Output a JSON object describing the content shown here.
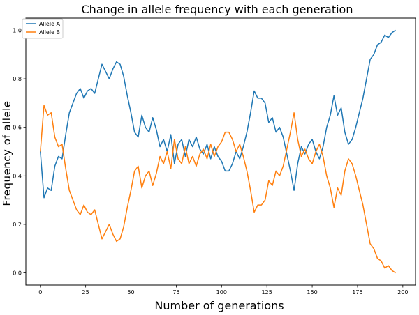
{
  "chart_data": {
    "type": "line",
    "title": "Change in allele frequency with each generation",
    "xlabel": "Number of generations",
    "ylabel": "Frequency of allele",
    "xlim": [
      -8,
      207
    ],
    "ylim": [
      -0.05,
      1.05
    ],
    "xticks": [
      0,
      25,
      50,
      75,
      100,
      125,
      150,
      175,
      200
    ],
    "xtick_labels": [
      "0",
      "25",
      "50",
      "75",
      "100",
      "125",
      "150",
      "175",
      "200"
    ],
    "yticks": [
      0.0,
      0.2,
      0.4,
      0.6,
      0.8,
      1.0
    ],
    "ytick_labels": [
      "0.0",
      "0.2",
      "0.4",
      "0.6",
      "0.8",
      "1.0"
    ],
    "grid": false,
    "legend_position": "top-left",
    "series": [
      {
        "name": "Allele A",
        "color": "#1f77b4",
        "x": [
          0,
          2,
          4,
          6,
          8,
          10,
          12,
          14,
          16,
          18,
          20,
          22,
          24,
          26,
          28,
          30,
          32,
          34,
          36,
          38,
          40,
          42,
          44,
          46,
          48,
          50,
          52,
          54,
          56,
          58,
          60,
          62,
          64,
          66,
          68,
          70,
          72,
          74,
          76,
          78,
          80,
          82,
          84,
          86,
          88,
          90,
          92,
          94,
          96,
          98,
          100,
          102,
          104,
          106,
          108,
          110,
          112,
          114,
          116,
          118,
          120,
          122,
          124,
          126,
          128,
          130,
          132,
          134,
          136,
          138,
          140,
          142,
          144,
          146,
          148,
          150,
          152,
          154,
          156,
          158,
          160,
          162,
          164,
          166,
          168,
          170,
          172,
          174,
          176,
          178,
          180,
          182,
          184,
          186,
          188,
          190,
          192,
          194,
          196
        ],
        "y": [
          0.5,
          0.31,
          0.35,
          0.34,
          0.44,
          0.48,
          0.47,
          0.57,
          0.66,
          0.7,
          0.74,
          0.76,
          0.72,
          0.75,
          0.76,
          0.74,
          0.8,
          0.86,
          0.83,
          0.8,
          0.84,
          0.87,
          0.86,
          0.81,
          0.73,
          0.66,
          0.58,
          0.56,
          0.65,
          0.6,
          0.58,
          0.64,
          0.59,
          0.52,
          0.55,
          0.5,
          0.57,
          0.45,
          0.53,
          0.55,
          0.48,
          0.55,
          0.52,
          0.56,
          0.51,
          0.49,
          0.53,
          0.47,
          0.52,
          0.48,
          0.46,
          0.42,
          0.42,
          0.45,
          0.5,
          0.47,
          0.52,
          0.58,
          0.66,
          0.75,
          0.72,
          0.72,
          0.7,
          0.62,
          0.64,
          0.58,
          0.6,
          0.56,
          0.49,
          0.42,
          0.34,
          0.45,
          0.52,
          0.49,
          0.53,
          0.55,
          0.5,
          0.47,
          0.52,
          0.6,
          0.65,
          0.73,
          0.65,
          0.68,
          0.58,
          0.53,
          0.55,
          0.6,
          0.66,
          0.72,
          0.8,
          0.88,
          0.9,
          0.94,
          0.95,
          0.98,
          0.97,
          0.99,
          1.0
        ]
      },
      {
        "name": "Allele B",
        "color": "#ff7f0e",
        "x": [
          0,
          2,
          4,
          6,
          8,
          10,
          12,
          14,
          16,
          18,
          20,
          22,
          24,
          26,
          28,
          30,
          32,
          34,
          36,
          38,
          40,
          42,
          44,
          46,
          48,
          50,
          52,
          54,
          56,
          58,
          60,
          62,
          64,
          66,
          68,
          70,
          72,
          74,
          76,
          78,
          80,
          82,
          84,
          86,
          88,
          90,
          92,
          94,
          96,
          98,
          100,
          102,
          104,
          106,
          108,
          110,
          112,
          114,
          116,
          118,
          120,
          122,
          124,
          126,
          128,
          130,
          132,
          134,
          136,
          138,
          140,
          142,
          144,
          146,
          148,
          150,
          152,
          154,
          156,
          158,
          160,
          162,
          164,
          166,
          168,
          170,
          172,
          174,
          176,
          178,
          180,
          182,
          184,
          186,
          188,
          190,
          192,
          194,
          196
        ],
        "y": [
          0.5,
          0.69,
          0.65,
          0.66,
          0.56,
          0.52,
          0.53,
          0.43,
          0.34,
          0.3,
          0.26,
          0.24,
          0.28,
          0.25,
          0.24,
          0.26,
          0.2,
          0.14,
          0.17,
          0.2,
          0.16,
          0.13,
          0.14,
          0.19,
          0.27,
          0.34,
          0.42,
          0.44,
          0.35,
          0.4,
          0.42,
          0.36,
          0.41,
          0.48,
          0.45,
          0.5,
          0.43,
          0.55,
          0.47,
          0.45,
          0.52,
          0.45,
          0.48,
          0.44,
          0.49,
          0.51,
          0.47,
          0.53,
          0.48,
          0.52,
          0.54,
          0.58,
          0.58,
          0.55,
          0.5,
          0.53,
          0.48,
          0.42,
          0.34,
          0.25,
          0.28,
          0.28,
          0.3,
          0.38,
          0.36,
          0.42,
          0.4,
          0.44,
          0.51,
          0.58,
          0.66,
          0.55,
          0.48,
          0.51,
          0.47,
          0.45,
          0.5,
          0.53,
          0.48,
          0.4,
          0.35,
          0.27,
          0.35,
          0.32,
          0.42,
          0.47,
          0.45,
          0.4,
          0.34,
          0.28,
          0.2,
          0.12,
          0.1,
          0.06,
          0.05,
          0.02,
          0.03,
          0.01,
          0.0
        ]
      }
    ]
  }
}
